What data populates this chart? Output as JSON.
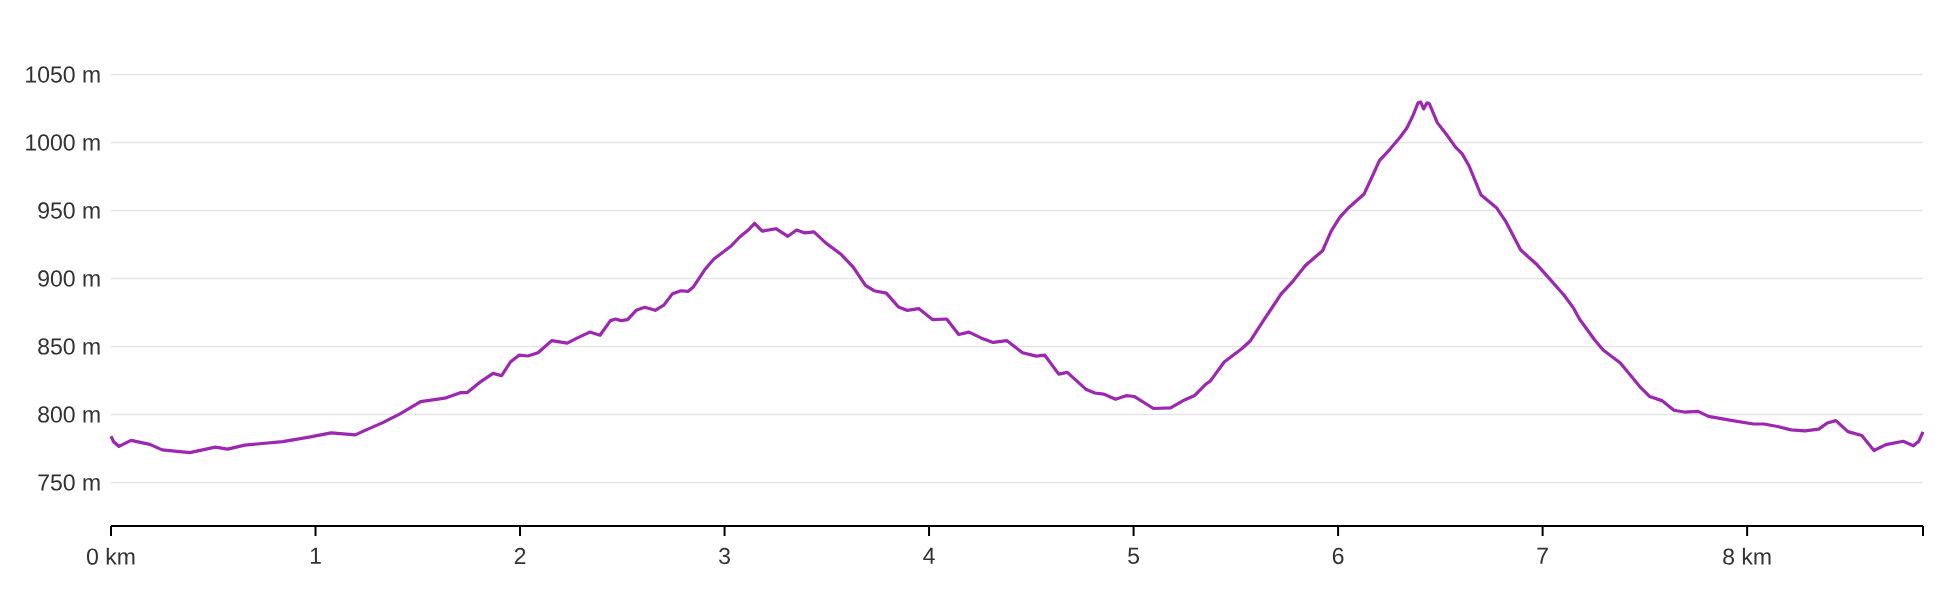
{
  "chart_data": {
    "type": "line",
    "color": "#9c27b0",
    "grid": "y",
    "xlim": [
      0,
      8.86
    ],
    "ylim": [
      718,
      1050
    ],
    "xticks": [
      {
        "value": 0,
        "label": "0 km"
      },
      1,
      2,
      3,
      4,
      5,
      6,
      7,
      {
        "value": 8,
        "label": "8 km"
      },
      {
        "value": 8.86,
        "label": null
      }
    ],
    "yticks": [
      {
        "value": 750,
        "label": "750 m"
      },
      {
        "value": 800,
        "label": "800 m"
      },
      {
        "value": 850,
        "label": "850 m"
      },
      {
        "value": 900,
        "label": "900 m"
      },
      {
        "value": 950,
        "label": "950 m"
      },
      {
        "value": 1000,
        "label": "1000 m"
      },
      {
        "value": 1050,
        "label": "1050 m"
      }
    ],
    "x": [
      0,
      0.013,
      0.039,
      0.098,
      0.19,
      0.25,
      0.385,
      0.51,
      0.57,
      0.654,
      0.84,
      0.975,
      1.076,
      1.194,
      1.245,
      1.329,
      1.413,
      1.514,
      1.632,
      1.708,
      1.741,
      1.801,
      1.868,
      1.91,
      1.953,
      1.995,
      2.038,
      2.088,
      2.155,
      2.231,
      2.281,
      2.341,
      2.391,
      2.442,
      2.467,
      2.493,
      2.526,
      2.568,
      2.61,
      2.661,
      2.703,
      2.745,
      2.787,
      2.821,
      2.846,
      2.906,
      2.948,
      3.032,
      3.074,
      3.116,
      3.147,
      3.184,
      3.251,
      3.31,
      3.352,
      3.394,
      3.437,
      3.496,
      3.571,
      3.63,
      3.689,
      3.731,
      3.791,
      3.85,
      3.892,
      3.951,
      4.018,
      4.086,
      4.145,
      4.195,
      4.254,
      4.313,
      4.381,
      4.457,
      4.524,
      4.566,
      4.634,
      4.676,
      4.769,
      4.811,
      4.853,
      4.912,
      4.963,
      5.005,
      5.097,
      5.181,
      5.249,
      5.299,
      5.351,
      5.376,
      5.443,
      5.527,
      5.569,
      5.646,
      5.721,
      5.78,
      5.84,
      5.924,
      5.966,
      6.008,
      6.05,
      6.126,
      6.16,
      6.202,
      6.252,
      6.303,
      6.337,
      6.367,
      6.391,
      6.404,
      6.418,
      6.435,
      6.446,
      6.485,
      6.531,
      6.573,
      6.606,
      6.64,
      6.699,
      6.776,
      6.818,
      6.893,
      6.969,
      7.029,
      7.104,
      7.153,
      7.18,
      7.254,
      7.296,
      7.38,
      7.473,
      7.524,
      7.583,
      7.642,
      7.693,
      7.76,
      7.811,
      7.929,
      8.031,
      8.082,
      8.149,
      8.215,
      8.283,
      8.35,
      8.392,
      8.434,
      8.493,
      8.561,
      8.62,
      8.679,
      8.763,
      8.813,
      8.839,
      8.86
    ],
    "values": [
      784,
      780,
      776.5,
      781,
      778,
      774,
      772,
      776,
      774.5,
      777.5,
      780,
      783.5,
      786.5,
      785,
      788.5,
      794,
      800.5,
      809.5,
      812,
      816,
      816,
      823.4,
      830.2,
      828.5,
      838.6,
      843.6,
      843,
      845.4,
      854.3,
      852.5,
      856.3,
      860.6,
      858.3,
      869,
      870.2,
      869,
      869.7,
      876.6,
      878.8,
      876.6,
      880.4,
      888.7,
      891,
      890.5,
      893.5,
      907,
      914.3,
      923.9,
      930.5,
      935.6,
      940.6,
      934.8,
      936.6,
      931,
      935.6,
      933.5,
      934.3,
      926,
      917.6,
      908.2,
      895,
      891,
      889.2,
      879.1,
      876.6,
      877.8,
      869.7,
      870.2,
      858.8,
      860.6,
      856.3,
      853,
      854.3,
      845.4,
      842.9,
      843.6,
      829.7,
      831,
      818.3,
      815.8,
      815,
      811.2,
      813.8,
      813.2,
      804.4,
      804.9,
      810.7,
      814,
      822,
      824.7,
      838.6,
      848.2,
      853.8,
      871.5,
      888.5,
      898.1,
      909.5,
      920.4,
      934.8,
      944.9,
      951.8,
      961.9,
      972.8,
      986.7,
      994.8,
      1003.9,
      1010.8,
      1020.1,
      1029.2,
      1029.7,
      1024.7,
      1029.2,
      1028.5,
      1014.6,
      1005.7,
      996.8,
      991.8,
      982.9,
      961.4,
      951.8,
      942.4,
      920.9,
      910.7,
      900.6,
      887.9,
      877.8,
      870.2,
      855,
      847.4,
      837.8,
      820.9,
      813.2,
      810.2,
      803.1,
      801.8,
      802.3,
      798.6,
      795.5,
      793,
      793,
      791.2,
      788.7,
      787.9,
      789.2,
      793.7,
      795.5,
      787.4,
      784.6,
      773.5,
      777.8,
      780.3,
      777,
      780.3,
      787.2
    ]
  }
}
